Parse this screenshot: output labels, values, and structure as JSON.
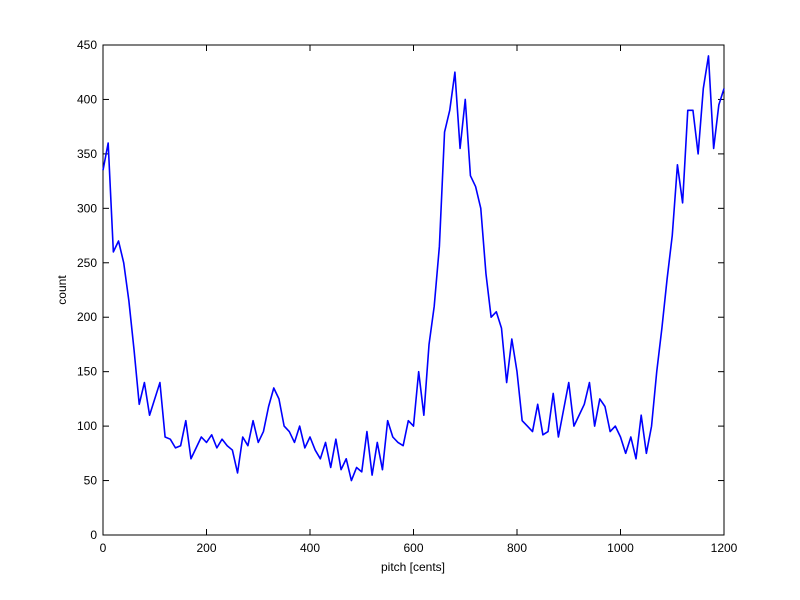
{
  "chart_data": {
    "type": "line",
    "xlabel": "pitch [cents]",
    "ylabel": "count",
    "x": [
      0,
      10,
      20,
      30,
      40,
      50,
      60,
      70,
      80,
      90,
      100,
      110,
      120,
      130,
      140,
      150,
      160,
      170,
      180,
      190,
      200,
      210,
      220,
      230,
      240,
      250,
      260,
      270,
      280,
      290,
      300,
      310,
      320,
      330,
      340,
      350,
      360,
      370,
      380,
      390,
      400,
      410,
      420,
      430,
      440,
      450,
      460,
      470,
      480,
      490,
      500,
      510,
      520,
      530,
      540,
      550,
      560,
      570,
      580,
      590,
      600,
      610,
      620,
      630,
      640,
      650,
      660,
      670,
      680,
      690,
      700,
      710,
      720,
      730,
      740,
      750,
      760,
      770,
      780,
      790,
      800,
      810,
      820,
      830,
      840,
      850,
      860,
      870,
      880,
      890,
      900,
      910,
      920,
      930,
      940,
      950,
      960,
      970,
      980,
      990,
      1000,
      1010,
      1020,
      1030,
      1040,
      1050,
      1060,
      1070,
      1080,
      1090,
      1100,
      1110,
      1120,
      1130,
      1140,
      1150,
      1160,
      1170,
      1180,
      1190,
      1200
    ],
    "series": [
      {
        "name": "count",
        "color": "#0000ff",
        "values": [
          335,
          360,
          260,
          270,
          250,
          215,
          170,
          120,
          140,
          110,
          125,
          140,
          90,
          88,
          80,
          82,
          105,
          70,
          80,
          90,
          85,
          92,
          80,
          88,
          82,
          78,
          57,
          90,
          82,
          105,
          85,
          95,
          118,
          135,
          125,
          100,
          95,
          85,
          100,
          80,
          90,
          78,
          70,
          85,
          62,
          88,
          60,
          70,
          50,
          62,
          58,
          95,
          55,
          85,
          60,
          105,
          90,
          85,
          82,
          105,
          100,
          150,
          110,
          175,
          210,
          265,
          370,
          390,
          425,
          355,
          400,
          330,
          320,
          300,
          240,
          200,
          205,
          190,
          140,
          180,
          150,
          105,
          100,
          95,
          120,
          92,
          95,
          130,
          90,
          115,
          140,
          100,
          110,
          120,
          140,
          100,
          125,
          118,
          95,
          100,
          90,
          75,
          90,
          70,
          110,
          75,
          100,
          150,
          190,
          235,
          275,
          340,
          305,
          390,
          390,
          350,
          410,
          440,
          355,
          395,
          410
        ]
      }
    ],
    "xlim": [
      0,
      1200
    ],
    "xticks": [
      0,
      200,
      400,
      600,
      800,
      1000,
      1200
    ],
    "ylim": [
      0,
      450
    ],
    "yticks": [
      0,
      50,
      100,
      150,
      200,
      250,
      300,
      350,
      400,
      450
    ],
    "grid": false
  }
}
